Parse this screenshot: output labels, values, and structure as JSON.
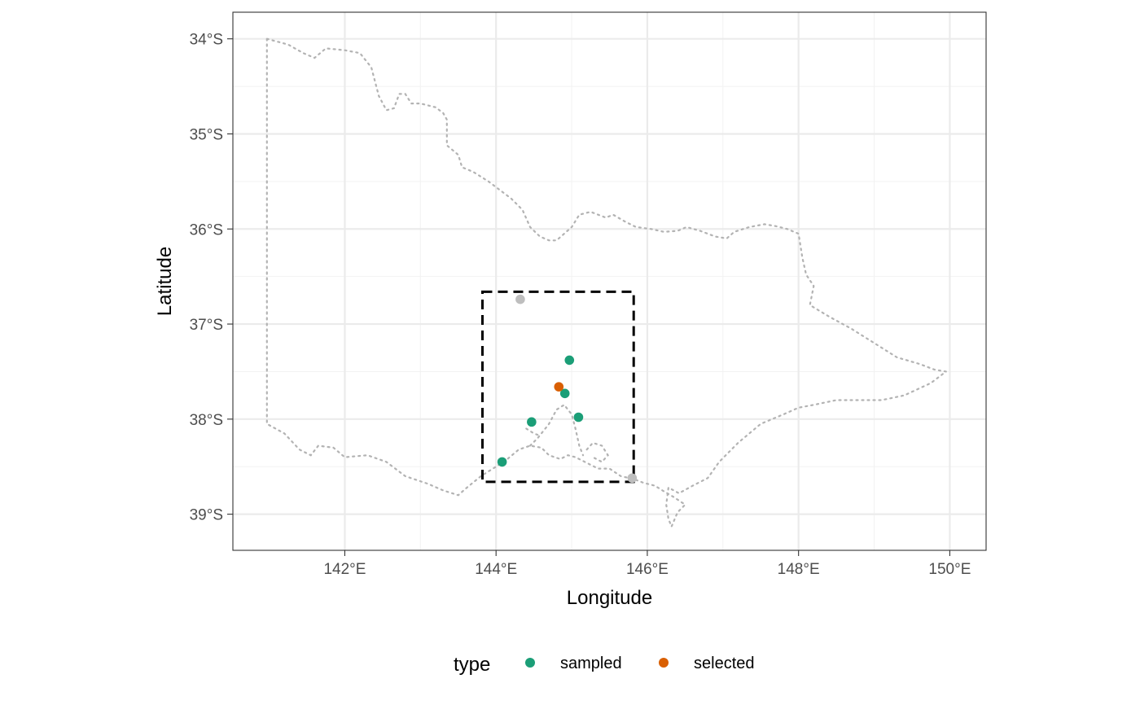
{
  "chart_data": {
    "type": "scatter",
    "map_type": "point map with region outline",
    "xlabel": "Longitude",
    "ylabel": "Latitude",
    "xlim": [
      140.52,
      150.48
    ],
    "ylim": [
      -39.38,
      -33.72
    ],
    "x_ticks": [
      {
        "value": 142,
        "label": "142°E"
      },
      {
        "value": 144,
        "label": "144°E"
      },
      {
        "value": 146,
        "label": "146°E"
      },
      {
        "value": 148,
        "label": "148°E"
      },
      {
        "value": 150,
        "label": "150°E"
      }
    ],
    "y_ticks": [
      {
        "value": -34,
        "label": "34°S"
      },
      {
        "value": -35,
        "label": "35°S"
      },
      {
        "value": -36,
        "label": "36°S"
      },
      {
        "value": -37,
        "label": "37°S"
      },
      {
        "value": -38,
        "label": "38°S"
      },
      {
        "value": -39,
        "label": "39°S"
      }
    ],
    "grid": true,
    "legend": {
      "title": "type",
      "position": "bottom",
      "entries": [
        {
          "label": "sampled",
          "color": "#1b9e77"
        },
        {
          "label": "selected",
          "color": "#d95f02"
        }
      ]
    },
    "bounding_box": {
      "lon_min": 143.82,
      "lon_max": 145.82,
      "lat_min": -38.66,
      "lat_max": -36.66,
      "style": "dashed",
      "color": "#000000"
    },
    "series": [
      {
        "name": "sampled",
        "color": "#1b9e77",
        "points": [
          {
            "lon": 144.97,
            "lat": -37.38
          },
          {
            "lon": 144.91,
            "lat": -37.73
          },
          {
            "lon": 144.47,
            "lat": -38.03
          },
          {
            "lon": 145.09,
            "lat": -37.98
          },
          {
            "lon": 144.08,
            "lat": -38.45
          }
        ]
      },
      {
        "name": "selected",
        "color": "#d95f02",
        "points": [
          {
            "lon": 144.83,
            "lat": -37.66
          }
        ]
      },
      {
        "name": "",
        "color": "#bebebe",
        "points": [
          {
            "lon": 144.32,
            "lat": -36.74
          },
          {
            "lon": 145.8,
            "lat": -38.62
          }
        ]
      }
    ],
    "outline": {
      "style": "dotted",
      "color": "#b3b3b3",
      "mainland": [
        [
          140.97,
          -34.0
        ],
        [
          141.25,
          -34.06
        ],
        [
          141.45,
          -34.15
        ],
        [
          141.6,
          -34.2
        ],
        [
          141.75,
          -34.1
        ],
        [
          142.0,
          -34.12
        ],
        [
          142.2,
          -34.15
        ],
        [
          142.35,
          -34.3
        ],
        [
          142.4,
          -34.45
        ],
        [
          142.45,
          -34.6
        ],
        [
          142.55,
          -34.75
        ],
        [
          142.65,
          -34.73
        ],
        [
          142.72,
          -34.58
        ],
        [
          142.8,
          -34.58
        ],
        [
          142.88,
          -34.68
        ],
        [
          143.0,
          -34.68
        ],
        [
          143.2,
          -34.72
        ],
        [
          143.3,
          -34.78
        ],
        [
          143.35,
          -34.85
        ],
        [
          143.35,
          -35.12
        ],
        [
          143.5,
          -35.22
        ],
        [
          143.55,
          -35.35
        ],
        [
          143.7,
          -35.4
        ],
        [
          143.9,
          -35.5
        ],
        [
          144.1,
          -35.62
        ],
        [
          144.2,
          -35.68
        ],
        [
          144.35,
          -35.8
        ],
        [
          144.45,
          -35.98
        ],
        [
          144.58,
          -36.08
        ],
        [
          144.7,
          -36.12
        ],
        [
          144.8,
          -36.12
        ],
        [
          144.9,
          -36.05
        ],
        [
          145.0,
          -35.98
        ],
        [
          145.1,
          -35.85
        ],
        [
          145.25,
          -35.82
        ],
        [
          145.45,
          -35.88
        ],
        [
          145.55,
          -35.85
        ],
        [
          145.7,
          -35.92
        ],
        [
          145.85,
          -35.98
        ],
        [
          146.05,
          -36.0
        ],
        [
          146.22,
          -36.03
        ],
        [
          146.4,
          -36.02
        ],
        [
          146.52,
          -35.98
        ],
        [
          146.7,
          -36.02
        ],
        [
          146.9,
          -36.08
        ],
        [
          147.05,
          -36.1
        ],
        [
          147.15,
          -36.03
        ],
        [
          147.35,
          -35.98
        ],
        [
          147.55,
          -35.95
        ],
        [
          147.7,
          -35.97
        ],
        [
          147.85,
          -36.0
        ],
        [
          148.0,
          -36.05
        ],
        [
          148.05,
          -36.3
        ],
        [
          148.1,
          -36.48
        ],
        [
          148.2,
          -36.6
        ],
        [
          148.15,
          -36.8
        ],
        [
          148.4,
          -36.92
        ],
        [
          148.7,
          -37.05
        ],
        [
          149.0,
          -37.2
        ],
        [
          149.3,
          -37.35
        ],
        [
          149.6,
          -37.42
        ],
        [
          149.8,
          -37.48
        ],
        [
          149.95,
          -37.5
        ],
        [
          149.75,
          -37.62
        ],
        [
          149.4,
          -37.75
        ],
        [
          149.1,
          -37.8
        ],
        [
          148.8,
          -37.8
        ],
        [
          148.5,
          -37.8
        ],
        [
          148.2,
          -37.85
        ],
        [
          148.0,
          -37.88
        ],
        [
          147.8,
          -37.95
        ],
        [
          147.5,
          -38.05
        ],
        [
          147.2,
          -38.25
        ],
        [
          146.95,
          -38.45
        ],
        [
          146.8,
          -38.62
        ],
        [
          146.6,
          -38.7
        ],
        [
          146.42,
          -38.78
        ],
        [
          146.28,
          -38.72
        ],
        [
          146.25,
          -38.9
        ],
        [
          146.28,
          -39.05
        ],
        [
          146.32,
          -39.13
        ],
        [
          146.4,
          -38.98
        ],
        [
          146.5,
          -38.9
        ],
        [
          146.35,
          -38.82
        ],
        [
          146.2,
          -38.75
        ],
        [
          146.1,
          -38.7
        ],
        [
          145.95,
          -38.67
        ],
        [
          145.82,
          -38.63
        ],
        [
          145.65,
          -38.6
        ],
        [
          145.5,
          -38.52
        ],
        [
          145.35,
          -38.52
        ],
        [
          145.2,
          -38.46
        ],
        [
          145.05,
          -38.4
        ],
        [
          144.95,
          -38.38
        ],
        [
          144.85,
          -38.42
        ],
        [
          144.7,
          -38.38
        ],
        [
          144.6,
          -38.3
        ],
        [
          144.45,
          -38.28
        ],
        [
          144.3,
          -38.32
        ],
        [
          144.15,
          -38.42
        ],
        [
          144.0,
          -38.5
        ],
        [
          143.8,
          -38.6
        ],
        [
          143.6,
          -38.73
        ],
        [
          143.5,
          -38.8
        ],
        [
          143.3,
          -38.75
        ],
        [
          143.1,
          -38.68
        ],
        [
          142.8,
          -38.6
        ],
        [
          142.55,
          -38.45
        ],
        [
          142.3,
          -38.38
        ],
        [
          142.0,
          -38.4
        ],
        [
          141.85,
          -38.3
        ],
        [
          141.65,
          -38.28
        ],
        [
          141.55,
          -38.38
        ],
        [
          141.4,
          -38.32
        ],
        [
          141.2,
          -38.15
        ],
        [
          140.97,
          -38.05
        ],
        [
          140.97,
          -34.0
        ]
      ],
      "bays": [
        [
          [
            144.45,
            -38.28
          ],
          [
            144.55,
            -38.2
          ],
          [
            144.7,
            -38.05
          ],
          [
            144.8,
            -37.9
          ],
          [
            144.9,
            -37.85
          ],
          [
            145.0,
            -37.95
          ],
          [
            145.05,
            -38.1
          ],
          [
            145.1,
            -38.28
          ],
          [
            145.15,
            -38.38
          ]
        ],
        [
          [
            145.2,
            -38.32
          ],
          [
            145.28,
            -38.25
          ],
          [
            145.4,
            -38.28
          ],
          [
            145.48,
            -38.38
          ],
          [
            145.4,
            -38.45
          ],
          [
            145.28,
            -38.4
          ]
        ],
        [
          [
            144.4,
            -38.1
          ],
          [
            144.5,
            -38.15
          ],
          [
            144.6,
            -38.18
          ]
        ]
      ]
    }
  }
}
